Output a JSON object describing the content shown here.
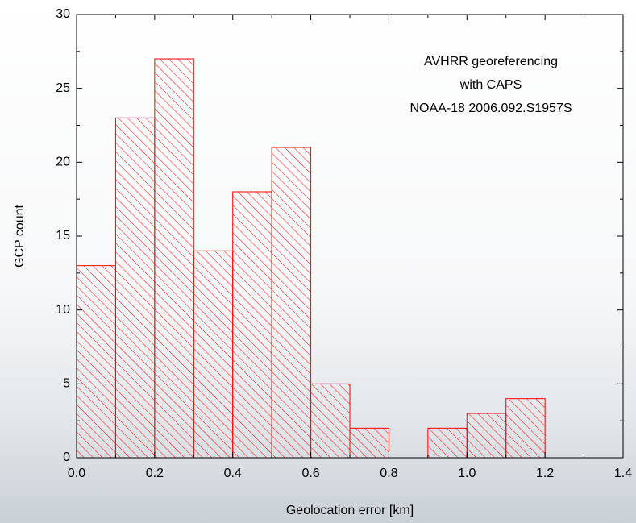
{
  "chart_data": {
    "type": "histogram",
    "annotation": [
      "AVHRR georeferencing",
      "with CAPS",
      "NOAA-18 2006.092.S1957S"
    ],
    "x_label": "Geolocation error [km]",
    "y_label": "GCP count",
    "bins": [
      0,
      0.1,
      0.2,
      0.3,
      0.4,
      0.5,
      0.6,
      0.7,
      0.8,
      0.9,
      1.0,
      1.1,
      1.2
    ],
    "values": [
      13,
      23,
      27,
      14,
      18,
      21,
      5,
      2,
      0,
      2,
      3,
      4
    ],
    "color": "#ff0000",
    "hatch": true,
    "xlim": [
      0,
      1.4
    ],
    "xticks": [
      {
        "value": 0,
        "label": "0.0"
      },
      0.2,
      0.4,
      0.6,
      0.8,
      {
        "value": 1,
        "label": "1.0"
      },
      1.2,
      1.4
    ],
    "ylim": [
      0,
      30
    ],
    "yticks": [
      0,
      5,
      10,
      15,
      20,
      25,
      30
    ]
  }
}
